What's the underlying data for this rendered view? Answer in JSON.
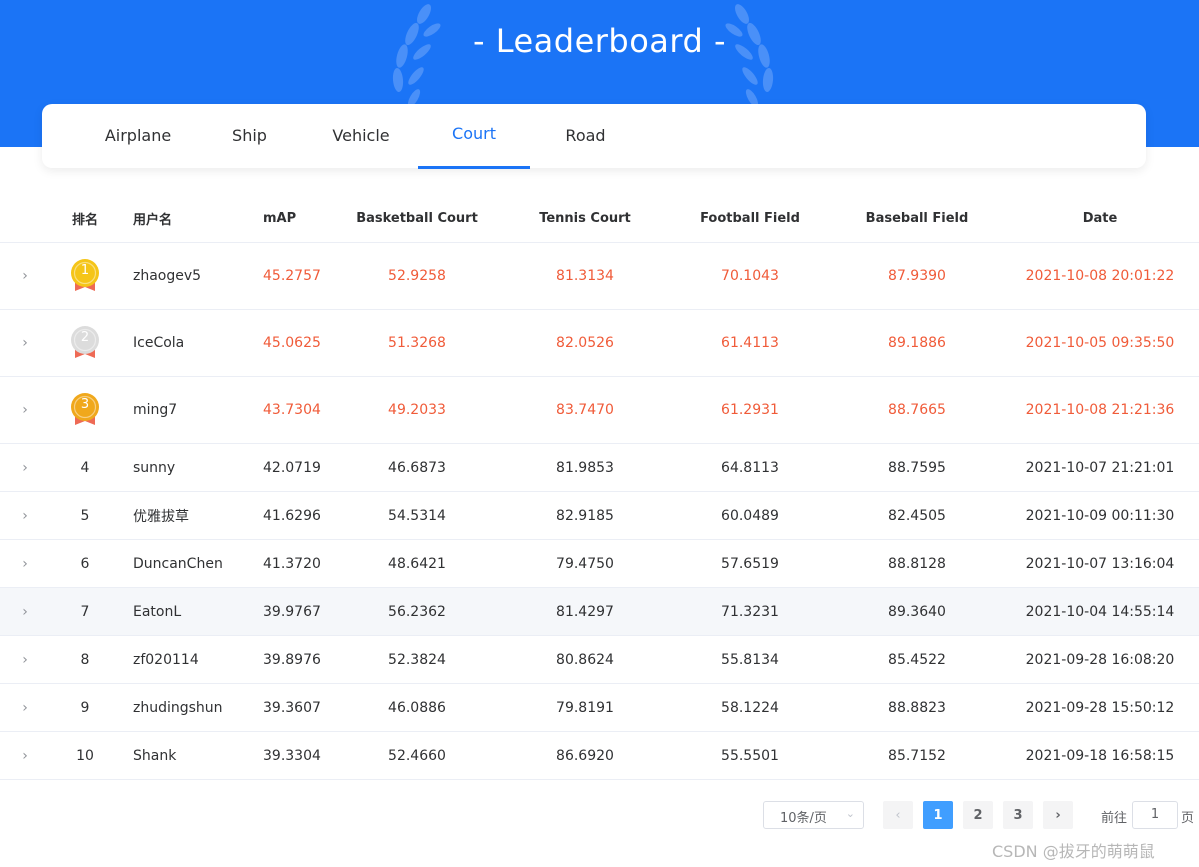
{
  "banner": {
    "title": "- Leaderboard -"
  },
  "tabs": [
    {
      "label": "Airplane",
      "active": false
    },
    {
      "label": "Ship",
      "active": false
    },
    {
      "label": "Vehicle",
      "active": false
    },
    {
      "label": "Court",
      "active": true
    },
    {
      "label": "Road",
      "active": false
    }
  ],
  "table": {
    "headers": [
      "排名",
      "用户名",
      "mAP",
      "Basketball Court",
      "Tennis Court",
      "Football Field",
      "Baseball Field",
      "Date"
    ],
    "rows": [
      {
        "rank": "1",
        "medal": "gold",
        "user": "zhaogev5",
        "map": "45.2757",
        "basketball": "52.9258",
        "tennis": "81.3134",
        "football": "70.1043",
        "baseball": "87.9390",
        "date": "2021-10-08 20:01:22"
      },
      {
        "rank": "2",
        "medal": "silver",
        "user": "IceCola",
        "map": "45.0625",
        "basketball": "51.3268",
        "tennis": "82.0526",
        "football": "61.4113",
        "baseball": "89.1886",
        "date": "2021-10-05 09:35:50"
      },
      {
        "rank": "3",
        "medal": "bronze",
        "user": "ming7",
        "map": "43.7304",
        "basketball": "49.2033",
        "tennis": "83.7470",
        "football": "61.2931",
        "baseball": "88.7665",
        "date": "2021-10-08 21:21:36"
      },
      {
        "rank": "4",
        "user": "sunny",
        "map": "42.0719",
        "basketball": "46.6873",
        "tennis": "81.9853",
        "football": "64.8113",
        "baseball": "88.7595",
        "date": "2021-10-07 21:21:01"
      },
      {
        "rank": "5",
        "user": "优雅拔草",
        "map": "41.6296",
        "basketball": "54.5314",
        "tennis": "82.9185",
        "football": "60.0489",
        "baseball": "82.4505",
        "date": "2021-10-09 00:11:30"
      },
      {
        "rank": "6",
        "user": "DuncanChen",
        "map": "41.3720",
        "basketball": "48.6421",
        "tennis": "79.4750",
        "football": "57.6519",
        "baseball": "88.8128",
        "date": "2021-10-07 13:16:04"
      },
      {
        "rank": "7",
        "user": "EatonL",
        "map": "39.9767",
        "basketball": "56.2362",
        "tennis": "81.4297",
        "football": "71.3231",
        "baseball": "89.3640",
        "date": "2021-10-04 14:55:14"
      },
      {
        "rank": "8",
        "user": "zf020114",
        "map": "39.8976",
        "basketball": "52.3824",
        "tennis": "80.8624",
        "football": "55.8134",
        "baseball": "85.4522",
        "date": "2021-09-28 16:08:20"
      },
      {
        "rank": "9",
        "user": "zhudingshun",
        "map": "39.3607",
        "basketball": "46.0886",
        "tennis": "79.8191",
        "football": "58.1224",
        "baseball": "88.8823",
        "date": "2021-09-28 15:50:12"
      },
      {
        "rank": "10",
        "user": "Shank",
        "map": "39.3304",
        "basketball": "52.4660",
        "tennis": "86.6920",
        "football": "55.5501",
        "baseball": "85.7152",
        "date": "2021-09-18 16:58:15"
      }
    ]
  },
  "pagination": {
    "page_size": "10条/页",
    "pages": [
      "1",
      "2",
      "3"
    ],
    "current": "1",
    "prev_icon": "chevron-left-icon",
    "next_icon": "chevron-right-icon",
    "goto_prefix": "前往",
    "goto_value": "1",
    "goto_suffix": "页"
  },
  "watermark": "CSDN @拔牙的萌萌鼠",
  "colors": {
    "primary": "#1b74f6",
    "top3_text": "#f05b39",
    "gold": "#f5c518",
    "silver": "#dcdcdc",
    "bronze": "#f0a81c",
    "ribbon": "#ee6a55"
  }
}
